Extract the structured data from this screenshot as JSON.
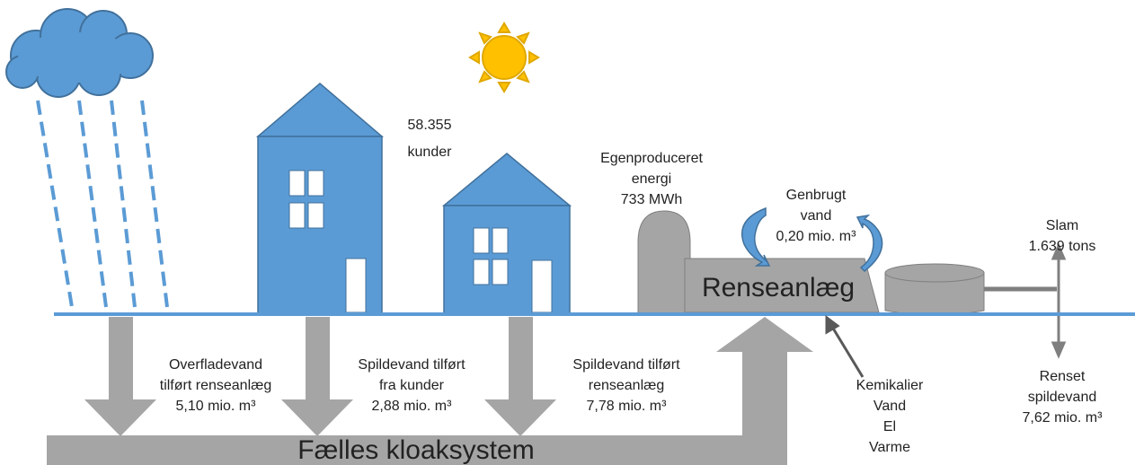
{
  "customers": {
    "lines": [
      "58.355",
      "kunder"
    ]
  },
  "energy": {
    "lines": [
      "Egenproduceret",
      "energi",
      "733 MWh"
    ]
  },
  "recycled_water": {
    "lines": [
      "Genbrugt",
      "vand",
      "0,20 mio. m³"
    ]
  },
  "plant": {
    "label": "Renseanlæg"
  },
  "sludge": {
    "lines": [
      "Slam",
      "1.639 tons"
    ]
  },
  "flows": [
    {
      "lines": [
        "Overfladevand",
        "tilført renseanlæg",
        "5,10 mio. m³"
      ]
    },
    {
      "lines": [
        "Spildevand tilført",
        "fra kunder",
        "2,88 mio. m³"
      ]
    },
    {
      "lines": [
        "Spildevand tilført",
        "renseanlæg",
        "7,78 mio. m³"
      ]
    }
  ],
  "inputs": {
    "lines": [
      "Kemikalier",
      "Vand",
      "El",
      "Varme"
    ]
  },
  "output": {
    "lines": [
      "Renset",
      "spildevand",
      "7,62 mio. m³"
    ]
  },
  "sewer": {
    "label": "Fælles kloaksystem"
  }
}
